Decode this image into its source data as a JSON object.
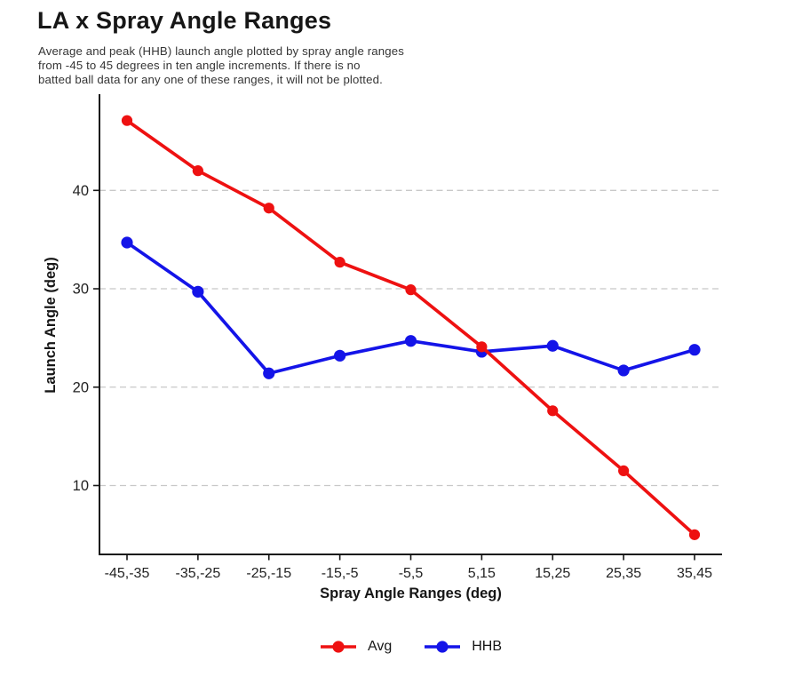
{
  "header": {
    "title": "LA x Spray Angle Ranges",
    "subtitle_lines": [
      "Average and peak (HHB) launch angle plotted by spray angle ranges",
      "from -45 to 45 degrees in ten angle increments. If there is no",
      "batted ball data for any one of these ranges, it will not be plotted."
    ]
  },
  "chart_data": {
    "type": "line",
    "title": "LA x Spray Angle Ranges",
    "xlabel": "Spray Angle Ranges (deg)",
    "ylabel": "Launch Angle (deg)",
    "categories": [
      "-45,-35",
      "-35,-25",
      "-25,-15",
      "-15,-5",
      "-5,5",
      "5,15",
      "15,25",
      "25,35",
      "35,45"
    ],
    "series": [
      {
        "name": "Avg",
        "color": "#ee1111",
        "values": [
          47.1,
          42.0,
          38.2,
          32.7,
          29.9,
          24.1,
          17.6,
          11.5,
          5.0
        ]
      },
      {
        "name": "HHB",
        "color": "#1414e8",
        "values": [
          34.7,
          29.7,
          21.4,
          23.2,
          24.7,
          23.6,
          24.2,
          21.7,
          23.8
        ]
      }
    ],
    "ylim": [
      3,
      49.6
    ],
    "yticks": [
      10,
      20,
      30,
      40
    ],
    "grid": "horizontal-dashed",
    "legend_position": "bottom-center"
  },
  "colors": {
    "grid": "#c8c8c8",
    "axis": "#161616",
    "tick_label": "#222222",
    "subtitle_text": "#353535",
    "avg_series": "#ee1111",
    "hhb_series": "#1414e8"
  }
}
